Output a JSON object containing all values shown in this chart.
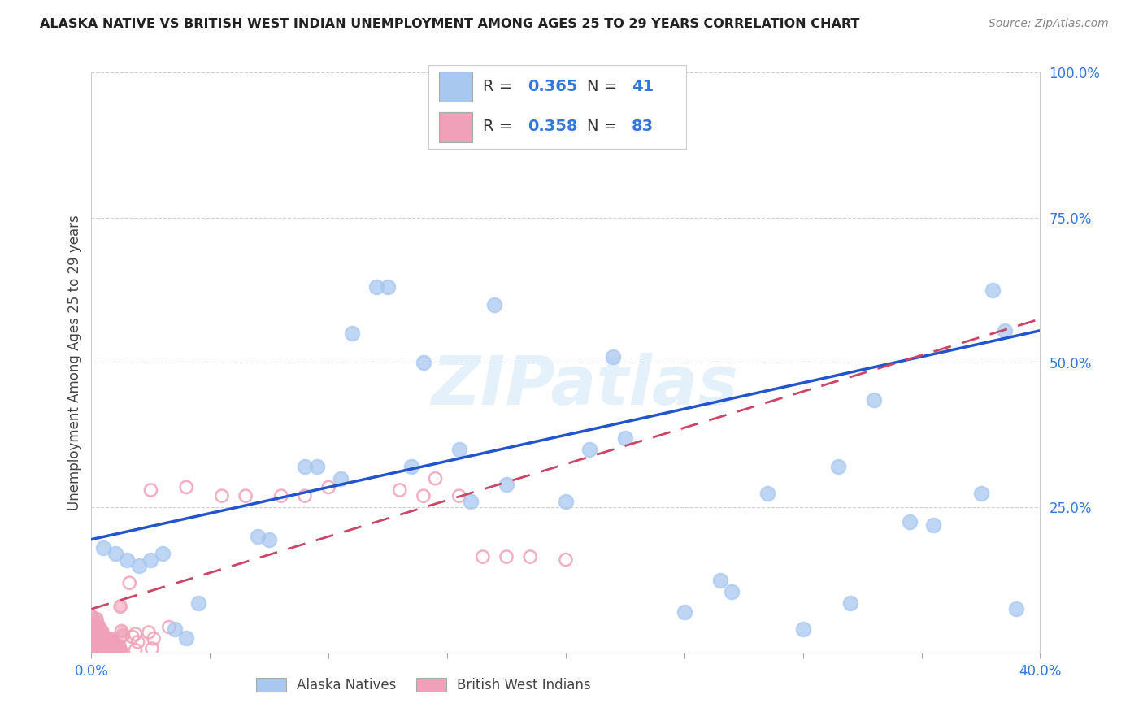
{
  "title": "ALASKA NATIVE VS BRITISH WEST INDIAN UNEMPLOYMENT AMONG AGES 25 TO 29 YEARS CORRELATION CHART",
  "source": "Source: ZipAtlas.com",
  "ylabel": "Unemployment Among Ages 25 to 29 years",
  "xlim": [
    0.0,
    0.4
  ],
  "ylim": [
    0.0,
    1.0
  ],
  "legend_r1": "0.365",
  "legend_n1": "41",
  "legend_r2": "0.358",
  "legend_n2": "83",
  "alaska_color": "#a8c8f0",
  "alaska_edge": "#7aaee0",
  "bwi_color": "#f0a0b8",
  "bwi_edge": "#e06888",
  "line_alaska_color": "#2255cc",
  "line_bwi_color": "#cc4466",
  "watermark": "ZIPatlas",
  "alaska_x": [
    0.005,
    0.01,
    0.015,
    0.02,
    0.025,
    0.03,
    0.035,
    0.04,
    0.045,
    0.07,
    0.075,
    0.09,
    0.095,
    0.105,
    0.11,
    0.12,
    0.125,
    0.135,
    0.14,
    0.155,
    0.17,
    0.22,
    0.225,
    0.25,
    0.265,
    0.27,
    0.285,
    0.3,
    0.315,
    0.32,
    0.33,
    0.345,
    0.355,
    0.375,
    0.38,
    0.385,
    0.39,
    0.2,
    0.21,
    0.16,
    0.175
  ],
  "alaska_y": [
    0.18,
    0.17,
    0.16,
    0.15,
    0.16,
    0.17,
    0.04,
    0.025,
    0.085,
    0.2,
    0.195,
    0.32,
    0.32,
    0.3,
    0.55,
    0.63,
    0.63,
    0.32,
    0.5,
    0.35,
    0.6,
    0.51,
    0.37,
    0.07,
    0.125,
    0.105,
    0.275,
    0.04,
    0.32,
    0.085,
    0.435,
    0.225,
    0.22,
    0.275,
    0.625,
    0.555,
    0.075,
    0.26,
    0.35,
    0.26,
    0.29
  ],
  "alaska_slope": 0.9,
  "alaska_intercept": 0.195,
  "bwi_slope": 1.25,
  "bwi_intercept": 0.075,
  "background_color": "#ffffff",
  "grid_color": "#d0d0d0",
  "text_color": "#3377dd"
}
